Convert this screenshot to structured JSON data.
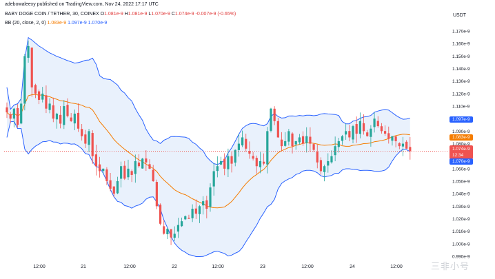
{
  "header": {
    "published": "adebowaleexy published on TradingView.com, Nov 24, 2022 17:17 UTC",
    "symbol": "BABY DOGE COIN / TETHER, 30, COINEX",
    "ohlc": {
      "o_label": "O",
      "o": "1.081e-9",
      "h_label": "H",
      "h": "1.081e-9",
      "l_label": "L",
      "l": "1.070e-9",
      "c_label": "C",
      "c": "1.074e-9",
      "change": "-0.007e-9 (-0.65%)"
    },
    "bb": {
      "label": "BB (20, close, 2, 0)",
      "basis": "1.083e-9",
      "upper": "1.097e-9",
      "lower": "1.070e-9"
    }
  },
  "price_axis": {
    "currency": "USDT",
    "ticks": [
      "1.170e-9",
      "1.160e-9",
      "1.150e-9",
      "1.140e-9",
      "1.130e-9",
      "1.120e-9",
      "1.110e-9",
      "1.100e-9",
      "1.090e-9",
      "1.080e-9",
      "1.070e-9",
      "1.060e-9",
      "1.050e-9",
      "1.040e-9",
      "1.030e-9",
      "1.020e-9",
      "1.010e-9",
      "1.000e-9",
      "0.990e-9"
    ],
    "tag_upper": "1.097e-9",
    "tag_basis": "1.083e-9",
    "tag_close": "1.074e-9",
    "tag_countdown": "12:34",
    "tag_lower": "1.070e-9"
  },
  "time_axis": {
    "labels": [
      "12:00",
      "21",
      "12:00",
      "22",
      "12:00",
      "23",
      "12:00",
      "24",
      "12:00"
    ]
  },
  "colors": {
    "up": "#26a69a",
    "down": "#ef5350",
    "basis": "#f57c00",
    "band": "#2962ff",
    "band_fill": "#e3eefb",
    "close_tag": "#ef5350",
    "band_tag": "#2962ff",
    "basis_tag": "#f57c00"
  },
  "watermark": "三非小号",
  "chart_data": {
    "type": "candlestick",
    "ylim": [
      0.99,
      1.175
    ],
    "y_unit": "e-9",
    "close_seed": [
      1.105,
      1.1,
      1.108,
      1.095,
      1.112,
      1.15,
      1.158,
      1.125,
      1.12,
      1.115,
      1.12,
      1.108,
      1.112,
      1.1,
      1.104,
      1.096,
      1.11,
      1.102,
      1.098,
      1.104,
      1.092,
      1.086,
      1.08,
      1.09,
      1.07,
      1.062,
      1.058,
      1.06,
      1.05,
      1.044,
      1.04,
      1.05,
      1.062,
      1.052,
      1.06,
      1.055,
      1.066,
      1.062,
      1.068,
      1.065,
      1.06,
      1.05,
      1.03,
      1.016,
      1.008,
      1.012,
      1.005,
      1.008,
      1.015,
      1.018,
      1.022,
      1.02,
      1.028,
      1.024,
      1.03,
      1.034,
      1.028,
      1.045,
      1.058,
      1.062,
      1.066,
      1.06,
      1.07,
      1.064,
      1.075,
      1.08,
      1.085,
      1.076,
      1.072,
      1.068,
      1.062,
      1.066,
      1.064,
      1.09,
      1.108,
      1.098,
      1.085,
      1.078,
      1.082,
      1.09,
      1.078,
      1.082,
      1.085,
      1.08,
      1.086,
      1.08,
      1.075,
      1.065,
      1.058,
      1.062,
      1.066,
      1.07,
      1.078,
      1.082,
      1.086,
      1.09,
      1.085,
      1.094,
      1.088,
      1.098,
      1.09,
      1.086,
      1.092,
      1.1,
      1.094,
      1.09,
      1.088,
      1.084,
      1.086,
      1.082,
      1.078,
      1.08,
      1.076,
      1.074
    ]
  }
}
